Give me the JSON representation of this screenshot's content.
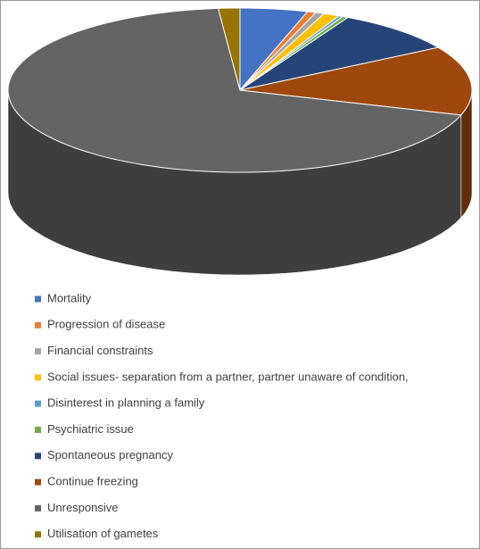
{
  "chart_data": {
    "type": "pie3d",
    "categories": [
      "Mortality",
      "Progression of disease",
      "Financial constraints",
      "Social issues- separation from a partner, partner unaware of condition,",
      "Disinterest in planning a family",
      "Psychiatric issue",
      "Spontaneous pregnancy",
      "Continue freezing",
      "Unresponsive",
      "Utilisation of gametes"
    ],
    "values": [
      4.7,
      0.6,
      0.6,
      1.1,
      0.3,
      0.4,
      8.6,
      13.6,
      68.6,
      1.5
    ],
    "colors": [
      "#4472c4",
      "#ed7d31",
      "#a5a5a5",
      "#ffc000",
      "#5b9bd5",
      "#70ad47",
      "#264478",
      "#9e480e",
      "#646464",
      "#997300"
    ],
    "legend": "bottom"
  }
}
